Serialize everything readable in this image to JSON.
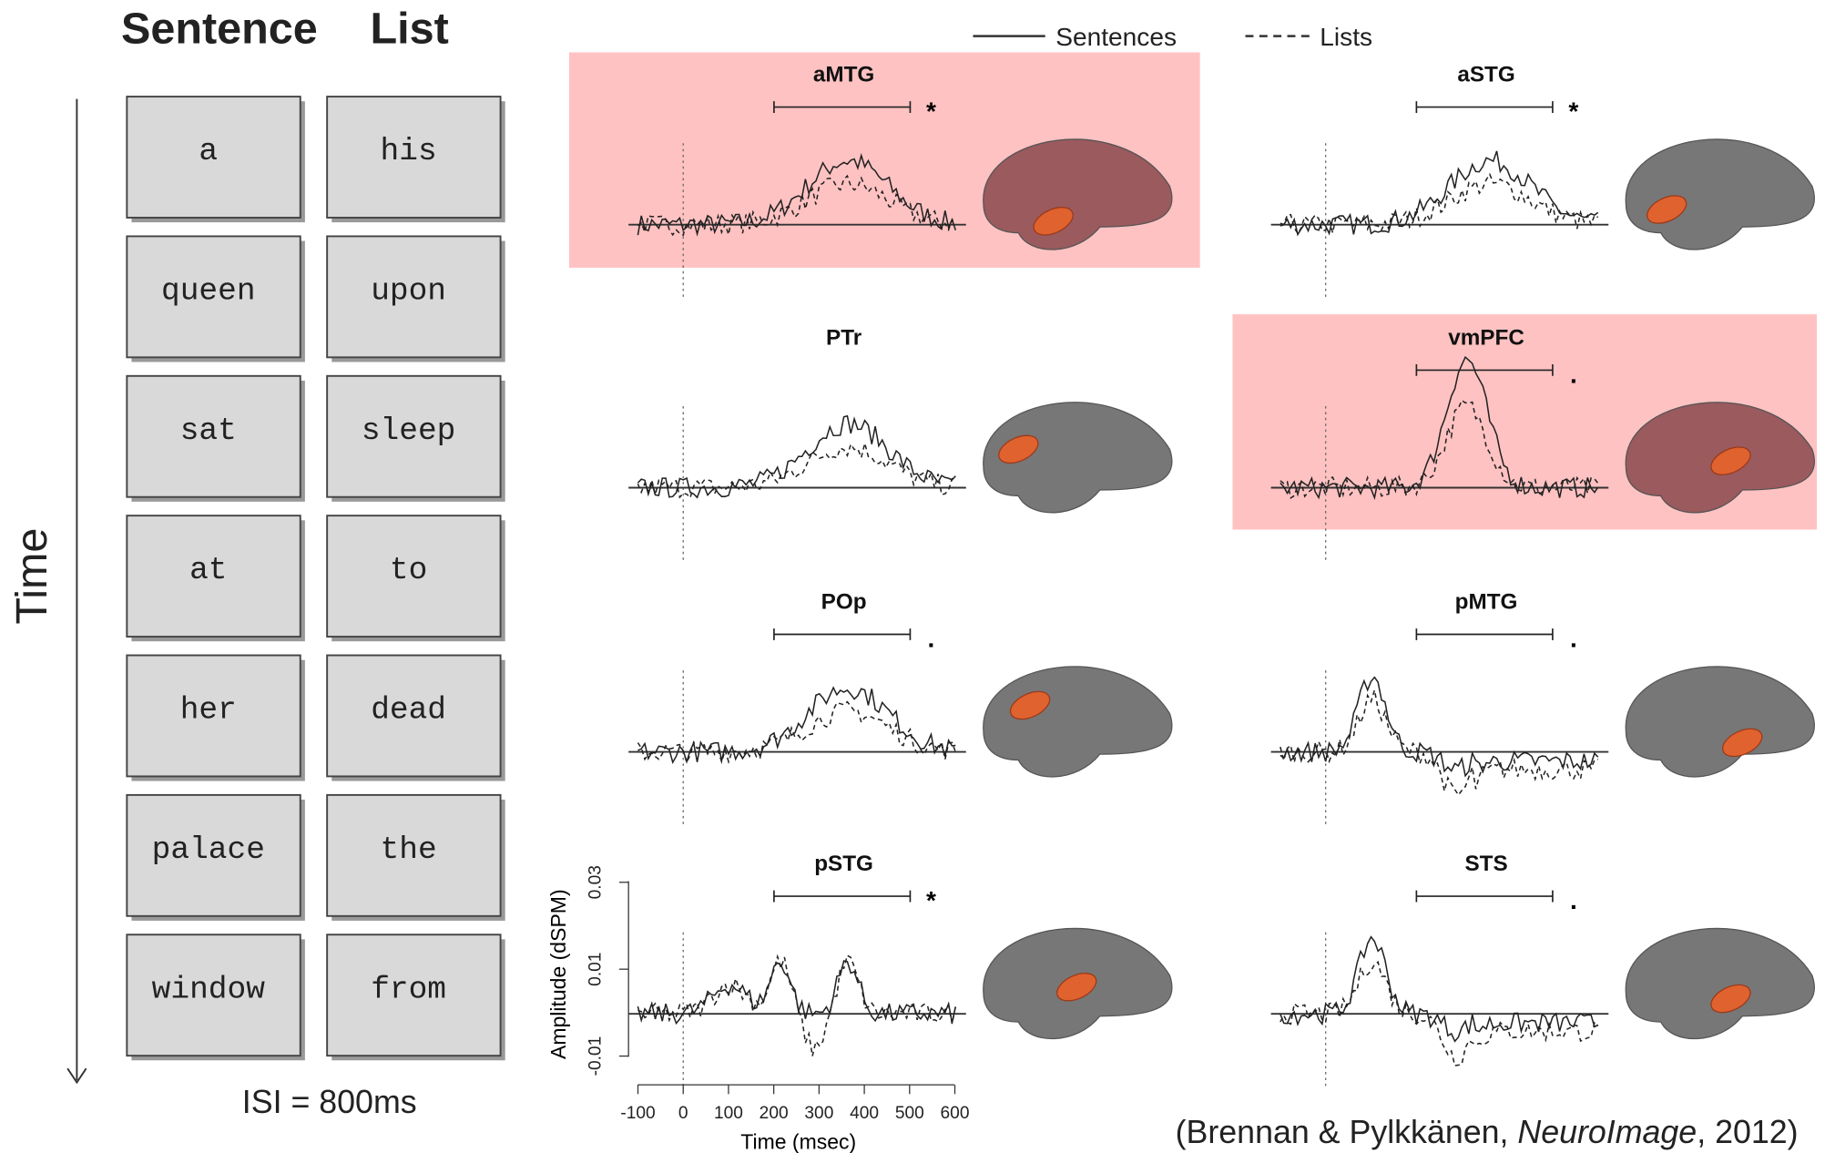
{
  "header": {
    "sentence": "Sentence",
    "list": "List"
  },
  "time_label": "Time",
  "words": [
    [
      "a",
      "his"
    ],
    [
      "queen",
      "upon"
    ],
    [
      "sat",
      "sleep"
    ],
    [
      "at",
      "to"
    ],
    [
      "her",
      "dead"
    ],
    [
      "palace",
      "the"
    ],
    [
      "window",
      "from"
    ]
  ],
  "isi": "ISI  = 800ms",
  "legend": {
    "solid": "Sentences",
    "dashed": "Lists"
  },
  "panels": [
    {
      "title": "aMTG",
      "marker": "*",
      "highlighted": true
    },
    {
      "title": "aSTG",
      "marker": "*",
      "highlighted": false
    },
    {
      "title": "PTr",
      "marker": "",
      "highlighted": false
    },
    {
      "title": "vmPFC",
      "marker": ".",
      "highlighted": true
    },
    {
      "title": "POp",
      "marker": ".",
      "highlighted": false
    },
    {
      "title": "pMTG",
      "marker": ".",
      "highlighted": false
    },
    {
      "title": "pSTG",
      "marker": "*",
      "highlighted": false
    },
    {
      "title": "STS",
      "marker": ".",
      "highlighted": false
    }
  ],
  "axis": {
    "y_label": "Amplitude (dSPM)",
    "y_ticks": [
      "0.03",
      "0.01",
      "-0.01"
    ],
    "x_ticks": [
      "-100",
      "0",
      "100",
      "200",
      "300",
      "400",
      "500",
      "600"
    ],
    "x_label": "Time (msec)"
  },
  "citation": {
    "pre": "(Brennan & Pylkkänen, ",
    "journal": "NeuroImage",
    "post": ", 2012)"
  }
}
